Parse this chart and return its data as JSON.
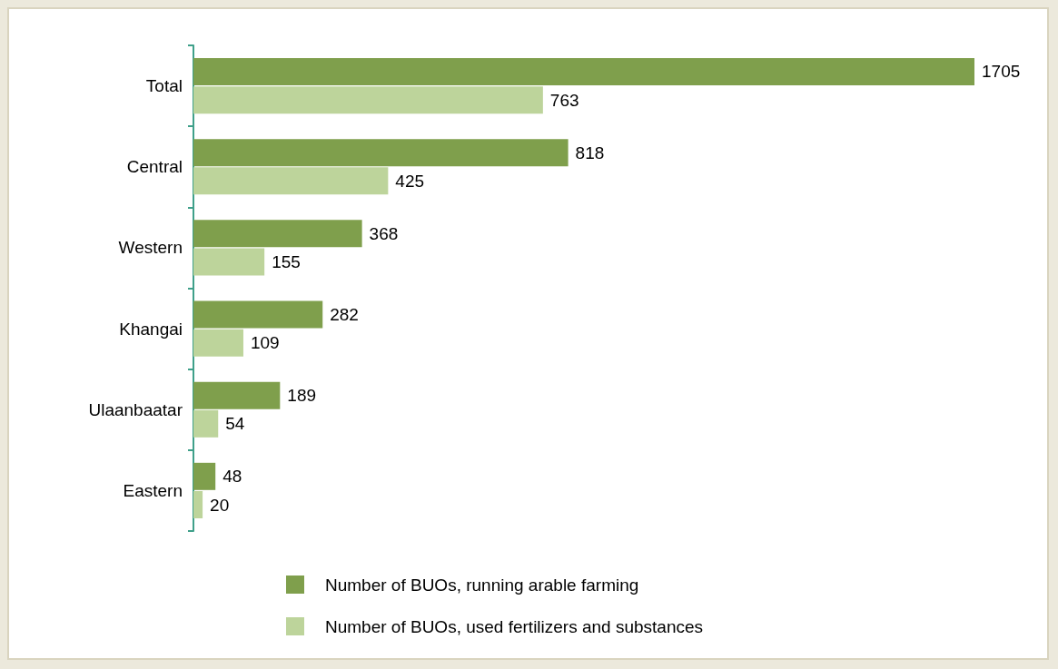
{
  "chart_data": {
    "type": "bar",
    "orientation": "horizontal",
    "categories": [
      "Total",
      "Central",
      "Western",
      "Khangai",
      "Ulaanbaatar",
      "Eastern"
    ],
    "series": [
      {
        "name": "Number of BUOs, running arable farming",
        "color": "#7f9f4c",
        "values": [
          1705,
          818,
          368,
          282,
          189,
          48
        ]
      },
      {
        "name": "Number of BUOs, used fertilizers and substances",
        "color": "#bdd49b",
        "values": [
          763,
          425,
          155,
          109,
          54,
          20
        ]
      }
    ],
    "data_labels": true,
    "legend": "bottom",
    "grid": false
  }
}
